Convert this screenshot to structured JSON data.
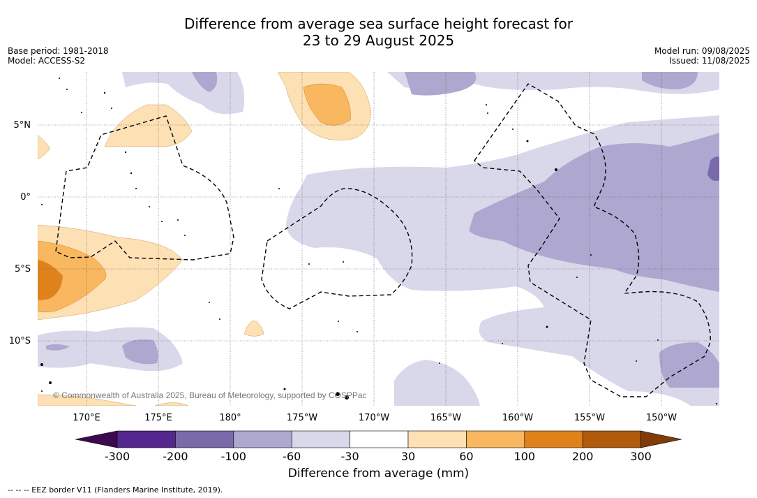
{
  "title_line1": "Difference from average sea surface height forecast for",
  "title_line2": "23 to 29 August 2025",
  "base_period": "Base period: 1981-2018",
  "model": "Model: ACCESS-S2",
  "model_run": "Model run: 09/08/2025",
  "issued": "Issued: 11/08/2025",
  "copyright": "© Commonwealth of Australia 2025, Bureau of Meteorology, supported by COSPPac",
  "lon_labels": [
    "170°E",
    "175°E",
    "180°",
    "175°W",
    "170°W",
    "165°W",
    "160°W",
    "155°W",
    "150°W"
  ],
  "lat_labels": [
    "5°N",
    "0°",
    "5°S",
    "10°S"
  ],
  "colorbar": {
    "title": "Difference from average (mm)",
    "tick_labels": [
      "-300",
      "-200",
      "-100",
      "-60",
      "-30",
      "30",
      "60",
      "100",
      "200",
      "300"
    ],
    "colors": [
      "#3d0a52",
      "#54278f",
      "#7a6aab",
      "#aea8d0",
      "#d8d8ea",
      "#ffffff",
      "#fde0b4",
      "#f9b75f",
      "#e0821c",
      "#b05a0c",
      "#7f3b08"
    ]
  },
  "footnote": "-- -- -- EEZ border V11 (Flanders Marine Institute, 2019)."
}
